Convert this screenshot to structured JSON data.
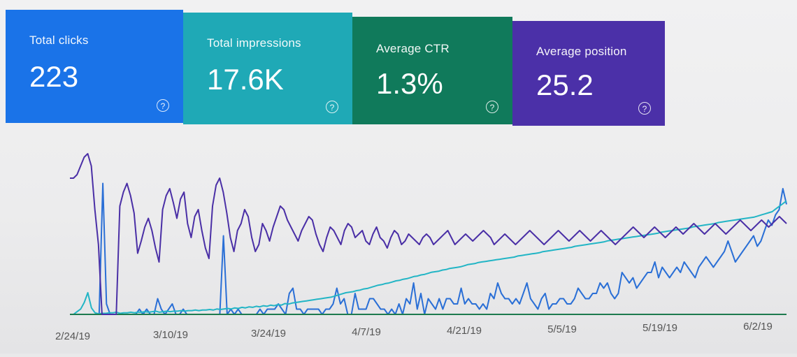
{
  "metrics": {
    "clicks": {
      "label": "Total clicks",
      "value": "223",
      "color": "#1a73e8"
    },
    "impressions": {
      "label": "Total impressions",
      "value": "17.6K",
      "color": "#1fa9b6"
    },
    "ctr": {
      "label": "Average CTR",
      "value": "1.3%",
      "color": "#107a5b"
    },
    "position": {
      "label": "Average position",
      "value": "25.2",
      "color": "#4b30a8"
    }
  },
  "help_glyph": "?",
  "chart_data": {
    "type": "line",
    "x_tick_labels": [
      "2/24/19",
      "3/10/19",
      "3/24/19",
      "4/7/19",
      "4/21/19",
      "5/5/19",
      "5/19/19",
      "6/2/19"
    ],
    "series": [
      {
        "metric": "clicks",
        "color": "#2a6fd6",
        "values": [
          0,
          0,
          0,
          0,
          0,
          0,
          0,
          0,
          0,
          25,
          2,
          0,
          0,
          0,
          0,
          0,
          0,
          0,
          0,
          1,
          0,
          1,
          0,
          0,
          3,
          1,
          0,
          1,
          2,
          0,
          0,
          1,
          0,
          0,
          0,
          0,
          0,
          0,
          0,
          0,
          0,
          0,
          15,
          0,
          1,
          0,
          1,
          0,
          0,
          0,
          0,
          0,
          1,
          0,
          1,
          1,
          1,
          2,
          1,
          0,
          4,
          5,
          1,
          1,
          0,
          1,
          1,
          1,
          1,
          0,
          1,
          1,
          2,
          5,
          2,
          3,
          0,
          0,
          4,
          1,
          1,
          1,
          3,
          3,
          2,
          1,
          1,
          0,
          1,
          0,
          2,
          0,
          3,
          2,
          6,
          1,
          4,
          0,
          3,
          2,
          1,
          3,
          1,
          3,
          3,
          2,
          2,
          5,
          2,
          3,
          2,
          2,
          1,
          2,
          1,
          4,
          3,
          6,
          4,
          3,
          3,
          2,
          3,
          2,
          4,
          6,
          3,
          2,
          1,
          3,
          4,
          1,
          2,
          2,
          3,
          3,
          2,
          2,
          3,
          5,
          4,
          3,
          3,
          4,
          4,
          6,
          5,
          6,
          4,
          3,
          4,
          8,
          7,
          6,
          7,
          5,
          6,
          7,
          8,
          8,
          10,
          7,
          9,
          8,
          7,
          8,
          9,
          8,
          10,
          9,
          8,
          7,
          9,
          10,
          11,
          10,
          9,
          10,
          11,
          12,
          14,
          12,
          10,
          11,
          12,
          13,
          14,
          15,
          13,
          14,
          16,
          18,
          17,
          19,
          20,
          24,
          21
        ]
      },
      {
        "metric": "impressions",
        "color": "#22b5c5",
        "values": [
          0,
          0,
          5,
          10,
          22,
          40,
          12,
          3,
          1,
          2,
          2,
          3,
          3,
          4,
          2,
          3,
          3,
          4,
          3,
          4,
          4,
          5,
          4,
          5,
          6,
          4,
          5,
          6,
          5,
          6,
          6,
          7,
          6,
          7,
          7,
          8,
          7,
          8,
          8,
          9,
          8,
          10,
          9,
          10,
          11,
          10,
          12,
          11,
          13,
          12,
          14,
          13,
          15,
          14,
          16,
          15,
          17,
          16,
          18,
          17,
          20,
          19,
          21,
          22,
          23,
          24,
          25,
          26,
          27,
          28,
          29,
          30,
          31,
          32,
          34,
          36,
          38,
          40,
          41,
          42,
          44,
          45,
          47,
          48,
          50,
          52,
          54,
          55,
          57,
          58,
          60,
          62,
          63,
          65,
          66,
          68,
          70,
          71,
          73,
          74,
          76,
          78,
          79,
          80,
          82,
          83,
          85,
          86,
          87,
          88,
          90,
          92,
          93,
          94,
          96,
          97,
          98,
          99,
          100,
          101,
          102,
          103,
          104,
          105,
          106,
          108,
          109,
          110,
          111,
          112,
          113,
          114,
          116,
          117,
          118,
          119,
          120,
          121,
          122,
          123,
          124,
          126,
          127,
          128,
          129,
          130,
          131,
          132,
          133,
          134,
          136,
          137,
          138,
          139,
          140,
          141,
          142,
          143,
          144,
          145,
          146,
          147,
          148,
          149,
          150,
          152,
          153,
          154,
          155,
          156,
          157,
          158,
          159,
          160,
          162,
          163,
          164,
          165,
          166,
          167,
          168,
          170,
          171,
          172,
          173,
          174,
          175,
          176,
          177,
          178,
          179,
          180,
          182,
          184,
          186,
          188,
          190,
          195,
          200,
          205,
          210
        ]
      },
      {
        "metric": "ctr",
        "color": "#1d7a4e",
        "values": [
          0,
          0,
          0,
          0,
          0,
          0,
          0,
          0,
          0,
          0,
          0,
          0,
          0,
          0,
          0,
          0,
          0,
          0,
          0,
          0,
          0,
          0,
          0,
          0,
          0,
          0,
          0,
          0,
          0,
          0,
          0,
          0,
          0,
          0,
          0,
          0,
          0,
          0,
          0,
          0,
          0,
          0,
          0,
          0,
          0,
          0,
          0,
          0,
          0,
          0,
          0,
          0,
          0,
          0,
          0,
          0,
          0,
          0,
          0,
          0,
          0,
          0,
          0,
          0,
          0,
          0,
          0,
          0,
          0,
          0,
          0,
          0,
          0,
          0,
          0,
          0,
          0,
          0,
          0,
          0,
          0,
          0,
          0,
          0,
          0,
          0,
          0,
          0,
          0,
          0,
          0,
          0,
          0,
          0,
          0,
          0,
          0,
          0,
          0,
          0,
          0,
          0,
          0,
          0,
          0,
          0,
          0,
          0,
          0,
          0,
          0,
          0,
          0,
          0,
          0,
          0,
          0,
          0,
          0,
          0,
          0,
          0,
          0,
          0,
          0,
          0,
          0,
          0,
          0,
          0,
          0,
          0,
          0,
          0,
          0,
          0,
          0,
          0,
          0,
          0,
          0,
          0,
          0,
          0,
          0,
          0,
          0,
          0,
          0,
          0,
          0,
          0,
          0,
          0,
          0,
          0,
          0,
          0,
          0,
          0,
          0,
          0,
          0,
          0,
          0,
          0,
          0,
          0,
          0,
          0,
          0,
          0,
          0,
          0,
          0,
          0,
          0,
          0,
          0,
          0,
          0,
          0,
          0,
          0,
          0,
          0,
          0,
          0,
          0,
          0,
          0,
          0,
          0,
          0,
          0,
          0,
          0,
          0,
          0,
          0,
          0,
          0,
          0,
          0,
          0,
          0,
          0
        ]
      },
      {
        "metric": "position",
        "color": "#4a2fa6",
        "values": [
          78,
          78,
          80,
          85,
          90,
          92,
          85,
          60,
          40,
          0,
          0,
          0,
          0,
          0,
          62,
          70,
          75,
          68,
          58,
          35,
          42,
          50,
          55,
          48,
          38,
          30,
          60,
          68,
          72,
          64,
          55,
          66,
          70,
          52,
          44,
          56,
          60,
          48,
          38,
          32,
          62,
          74,
          78,
          70,
          58,
          44,
          36,
          48,
          52,
          60,
          56,
          44,
          36,
          40,
          52,
          48,
          42,
          50,
          56,
          62,
          60,
          54,
          50,
          46,
          42,
          48,
          52,
          56,
          54,
          46,
          40,
          36,
          44,
          50,
          48,
          44,
          40,
          48,
          52,
          50,
          44,
          46,
          48,
          42,
          40,
          46,
          50,
          44,
          42,
          38,
          44,
          48,
          46,
          40,
          42,
          46,
          44,
          42,
          40,
          44,
          46,
          44,
          40,
          42,
          44,
          46,
          48,
          44,
          40,
          42,
          44,
          46,
          44,
          42,
          44,
          46,
          48,
          46,
          44,
          40,
          42,
          44,
          46,
          44,
          42,
          40,
          42,
          44,
          46,
          48,
          46,
          44,
          42,
          40,
          42,
          44,
          46,
          48,
          46,
          44,
          42,
          44,
          46,
          48,
          46,
          44,
          42,
          44,
          46,
          48,
          46,
          44,
          42,
          40,
          42,
          44,
          46,
          48,
          50,
          48,
          46,
          44,
          46,
          48,
          50,
          48,
          46,
          44,
          46,
          48,
          50,
          48,
          46,
          48,
          50,
          52,
          50,
          48,
          46,
          48,
          50,
          52,
          50,
          48,
          46,
          48,
          50,
          52,
          54,
          52,
          50,
          48,
          50,
          52,
          54,
          52,
          50,
          52,
          54,
          56,
          54,
          52
        ]
      }
    ]
  }
}
